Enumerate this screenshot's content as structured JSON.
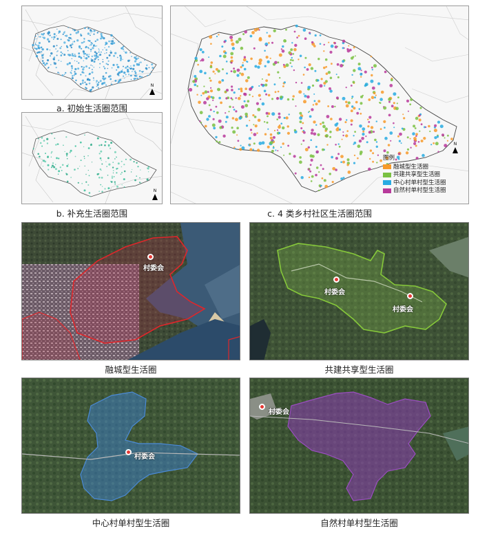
{
  "captions": {
    "a": "a. 初始生活圈范围",
    "b": "b. 补充生活圈范围",
    "c": "c. 4 类乡村社区生活圈范围",
    "s1": "融城型生活圈",
    "s2": "共建共享型生活圈",
    "s3": "中心村单村型生活圈",
    "s4": "自然村单村型生活圈"
  },
  "legend": {
    "title": "图例",
    "items": [
      {
        "label": "融城型生活圈",
        "color": "#f79a2a"
      },
      {
        "label": "共建共享型生活圈",
        "color": "#7ac142"
      },
      {
        "label": "中心村单村型生活圈",
        "color": "#29abe2"
      },
      {
        "label": "自然村单村型生活圈",
        "color": "#b83a9b"
      }
    ]
  },
  "north": "N",
  "marker_label": "村委会",
  "colors": {
    "initial": "#3aa0d8",
    "supplement": "#3cbf9c",
    "boundary": "#555555",
    "roads": "#bdbdbd",
    "s1_outline": "#e0262a",
    "s2_outline": "#86c83a",
    "s3_fill": "#3d7fd0",
    "s4_fill": "#8a3fb0",
    "marker": "#e53935"
  }
}
